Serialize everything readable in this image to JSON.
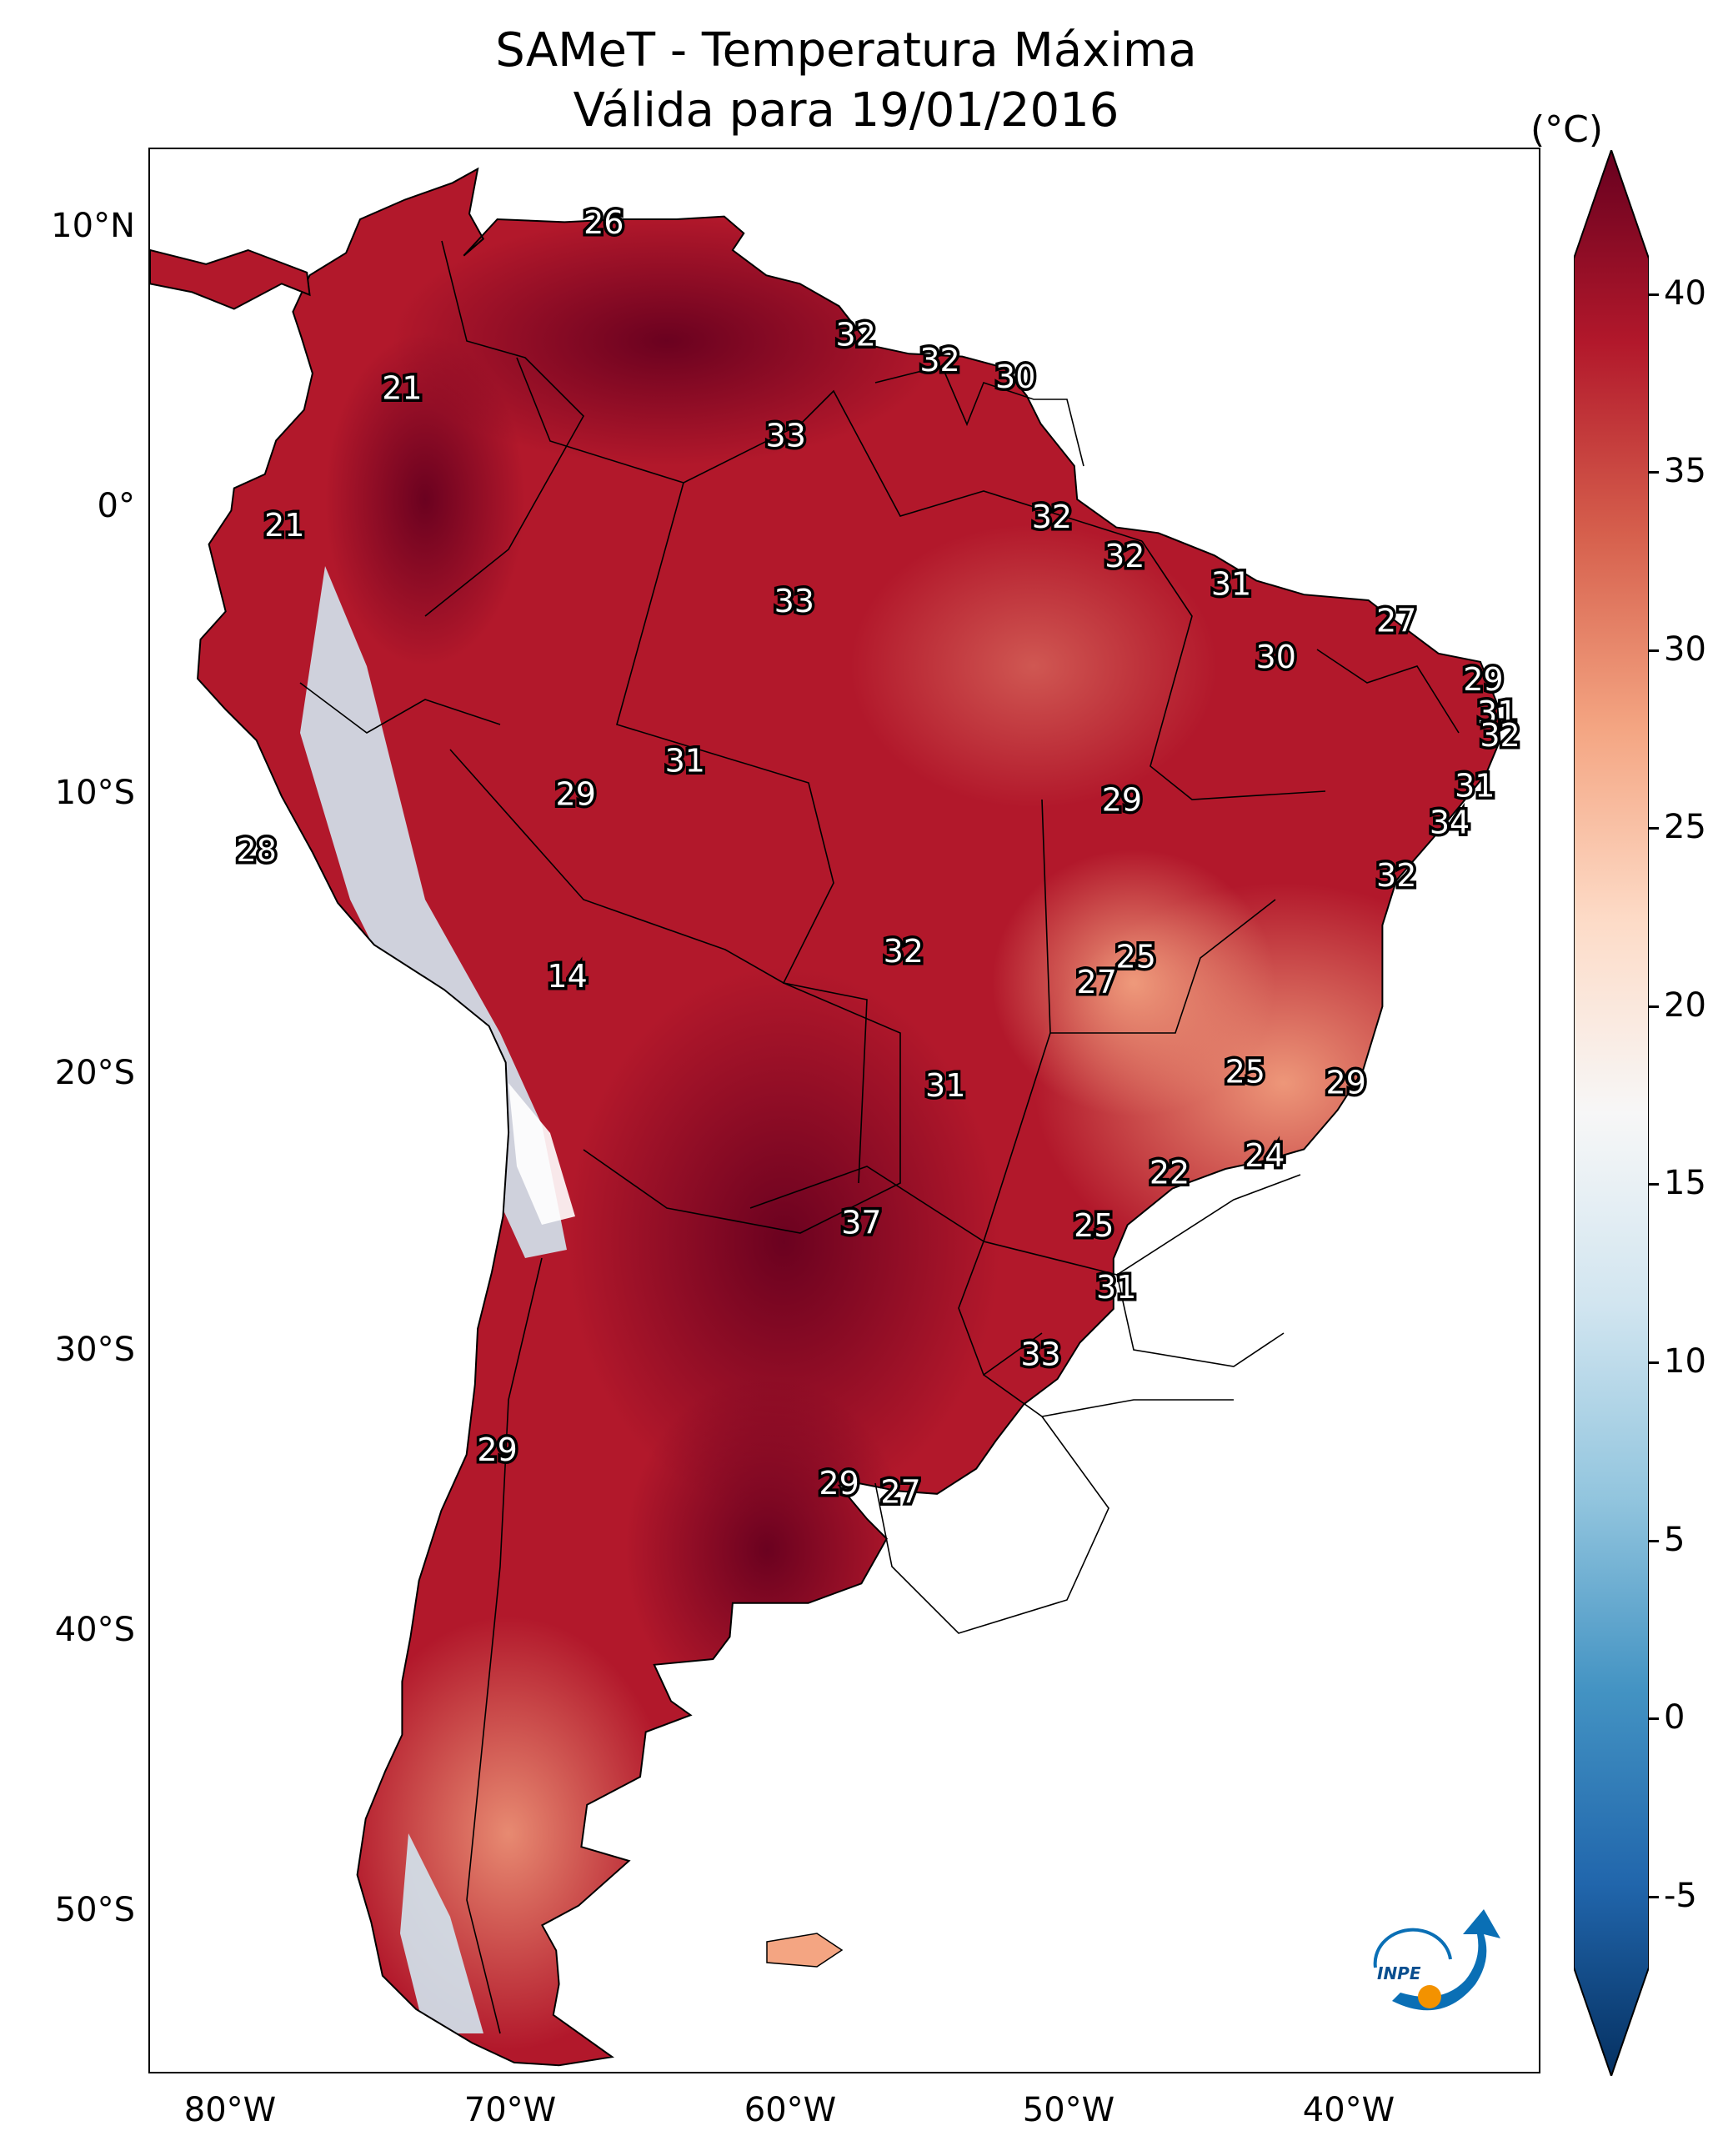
{
  "title": {
    "line1": "SAMeT - Temperatura Máxima",
    "line2": "Válida para 19/01/2016"
  },
  "axes": {
    "lat_labels": [
      "10°N",
      "0°",
      "10°S",
      "20°S",
      "30°S",
      "40°S",
      "50°S"
    ],
    "lon_labels": [
      "80°W",
      "70°W",
      "60°W",
      "50°W",
      "40°W"
    ]
  },
  "colorbar": {
    "unit": "(°C)",
    "ticks": [
      "40",
      "35",
      "30",
      "25",
      "20",
      "15",
      "10",
      "5",
      "0",
      "-5"
    ],
    "range": [
      -7,
      41
    ],
    "colormap": "RdBu_r",
    "colors": [
      "#053061",
      "#2166ac",
      "#4393c3",
      "#92c5de",
      "#d1e5f0",
      "#f7f7f7",
      "#fddbc7",
      "#f4a582",
      "#d6604d",
      "#b2182b",
      "#67001f"
    ]
  },
  "temperature_labels": [
    {
      "value": "26",
      "lon": -66.8,
      "lat": 10.4
    },
    {
      "value": "32",
      "lon": -57.8,
      "lat": 6.4
    },
    {
      "value": "32",
      "lon": -54.8,
      "lat": 5.5
    },
    {
      "value": "30",
      "lon": -52.1,
      "lat": 4.9
    },
    {
      "value": "21",
      "lon": -74.0,
      "lat": 4.5
    },
    {
      "value": "33",
      "lon": -60.3,
      "lat": 2.8
    },
    {
      "value": "21",
      "lon": -78.2,
      "lat": -0.4
    },
    {
      "value": "32",
      "lon": -50.8,
      "lat": -0.1
    },
    {
      "value": "32",
      "lon": -48.2,
      "lat": -1.5
    },
    {
      "value": "31",
      "lon": -44.4,
      "lat": -2.5
    },
    {
      "value": "33",
      "lon": -60.0,
      "lat": -3.1
    },
    {
      "value": "27",
      "lon": -38.5,
      "lat": -3.8
    },
    {
      "value": "30",
      "lon": -42.8,
      "lat": -5.1
    },
    {
      "value": "29",
      "lon": -35.4,
      "lat": -5.9
    },
    {
      "value": "31",
      "lon": -34.9,
      "lat": -7.1
    },
    {
      "value": "32",
      "lon": -34.8,
      "lat": -7.9
    },
    {
      "value": "31",
      "lon": -63.9,
      "lat": -8.8
    },
    {
      "value": "29",
      "lon": -67.8,
      "lat": -10.0
    },
    {
      "value": "29",
      "lon": -48.3,
      "lat": -10.2
    },
    {
      "value": "31",
      "lon": -35.7,
      "lat": -9.7
    },
    {
      "value": "34",
      "lon": -36.6,
      "lat": -11.0
    },
    {
      "value": "28",
      "lon": -79.2,
      "lat": -12.0
    },
    {
      "value": "32",
      "lon": -38.5,
      "lat": -12.9
    },
    {
      "value": "32",
      "lon": -56.1,
      "lat": -15.6
    },
    {
      "value": "25",
      "lon": -47.8,
      "lat": -15.8
    },
    {
      "value": "27",
      "lon": -49.2,
      "lat": -16.7
    },
    {
      "value": "14",
      "lon": -68.1,
      "lat": -16.5
    },
    {
      "value": "25",
      "lon": -43.9,
      "lat": -19.9
    },
    {
      "value": "31",
      "lon": -54.6,
      "lat": -20.4
    },
    {
      "value": "29",
      "lon": -40.3,
      "lat": -20.3
    },
    {
      "value": "24",
      "lon": -43.2,
      "lat": -22.9
    },
    {
      "value": "22",
      "lon": -46.6,
      "lat": -23.5
    },
    {
      "value": "37",
      "lon": -57.6,
      "lat": -25.3
    },
    {
      "value": "25",
      "lon": -49.3,
      "lat": -25.4
    },
    {
      "value": "31",
      "lon": -48.5,
      "lat": -27.6
    },
    {
      "value": "33",
      "lon": -51.2,
      "lat": -30.0
    },
    {
      "value": "29",
      "lon": -70.6,
      "lat": -33.4
    },
    {
      "value": "29",
      "lon": -58.4,
      "lat": -34.6
    },
    {
      "value": "27",
      "lon": -56.2,
      "lat": -34.9
    }
  ]
}
